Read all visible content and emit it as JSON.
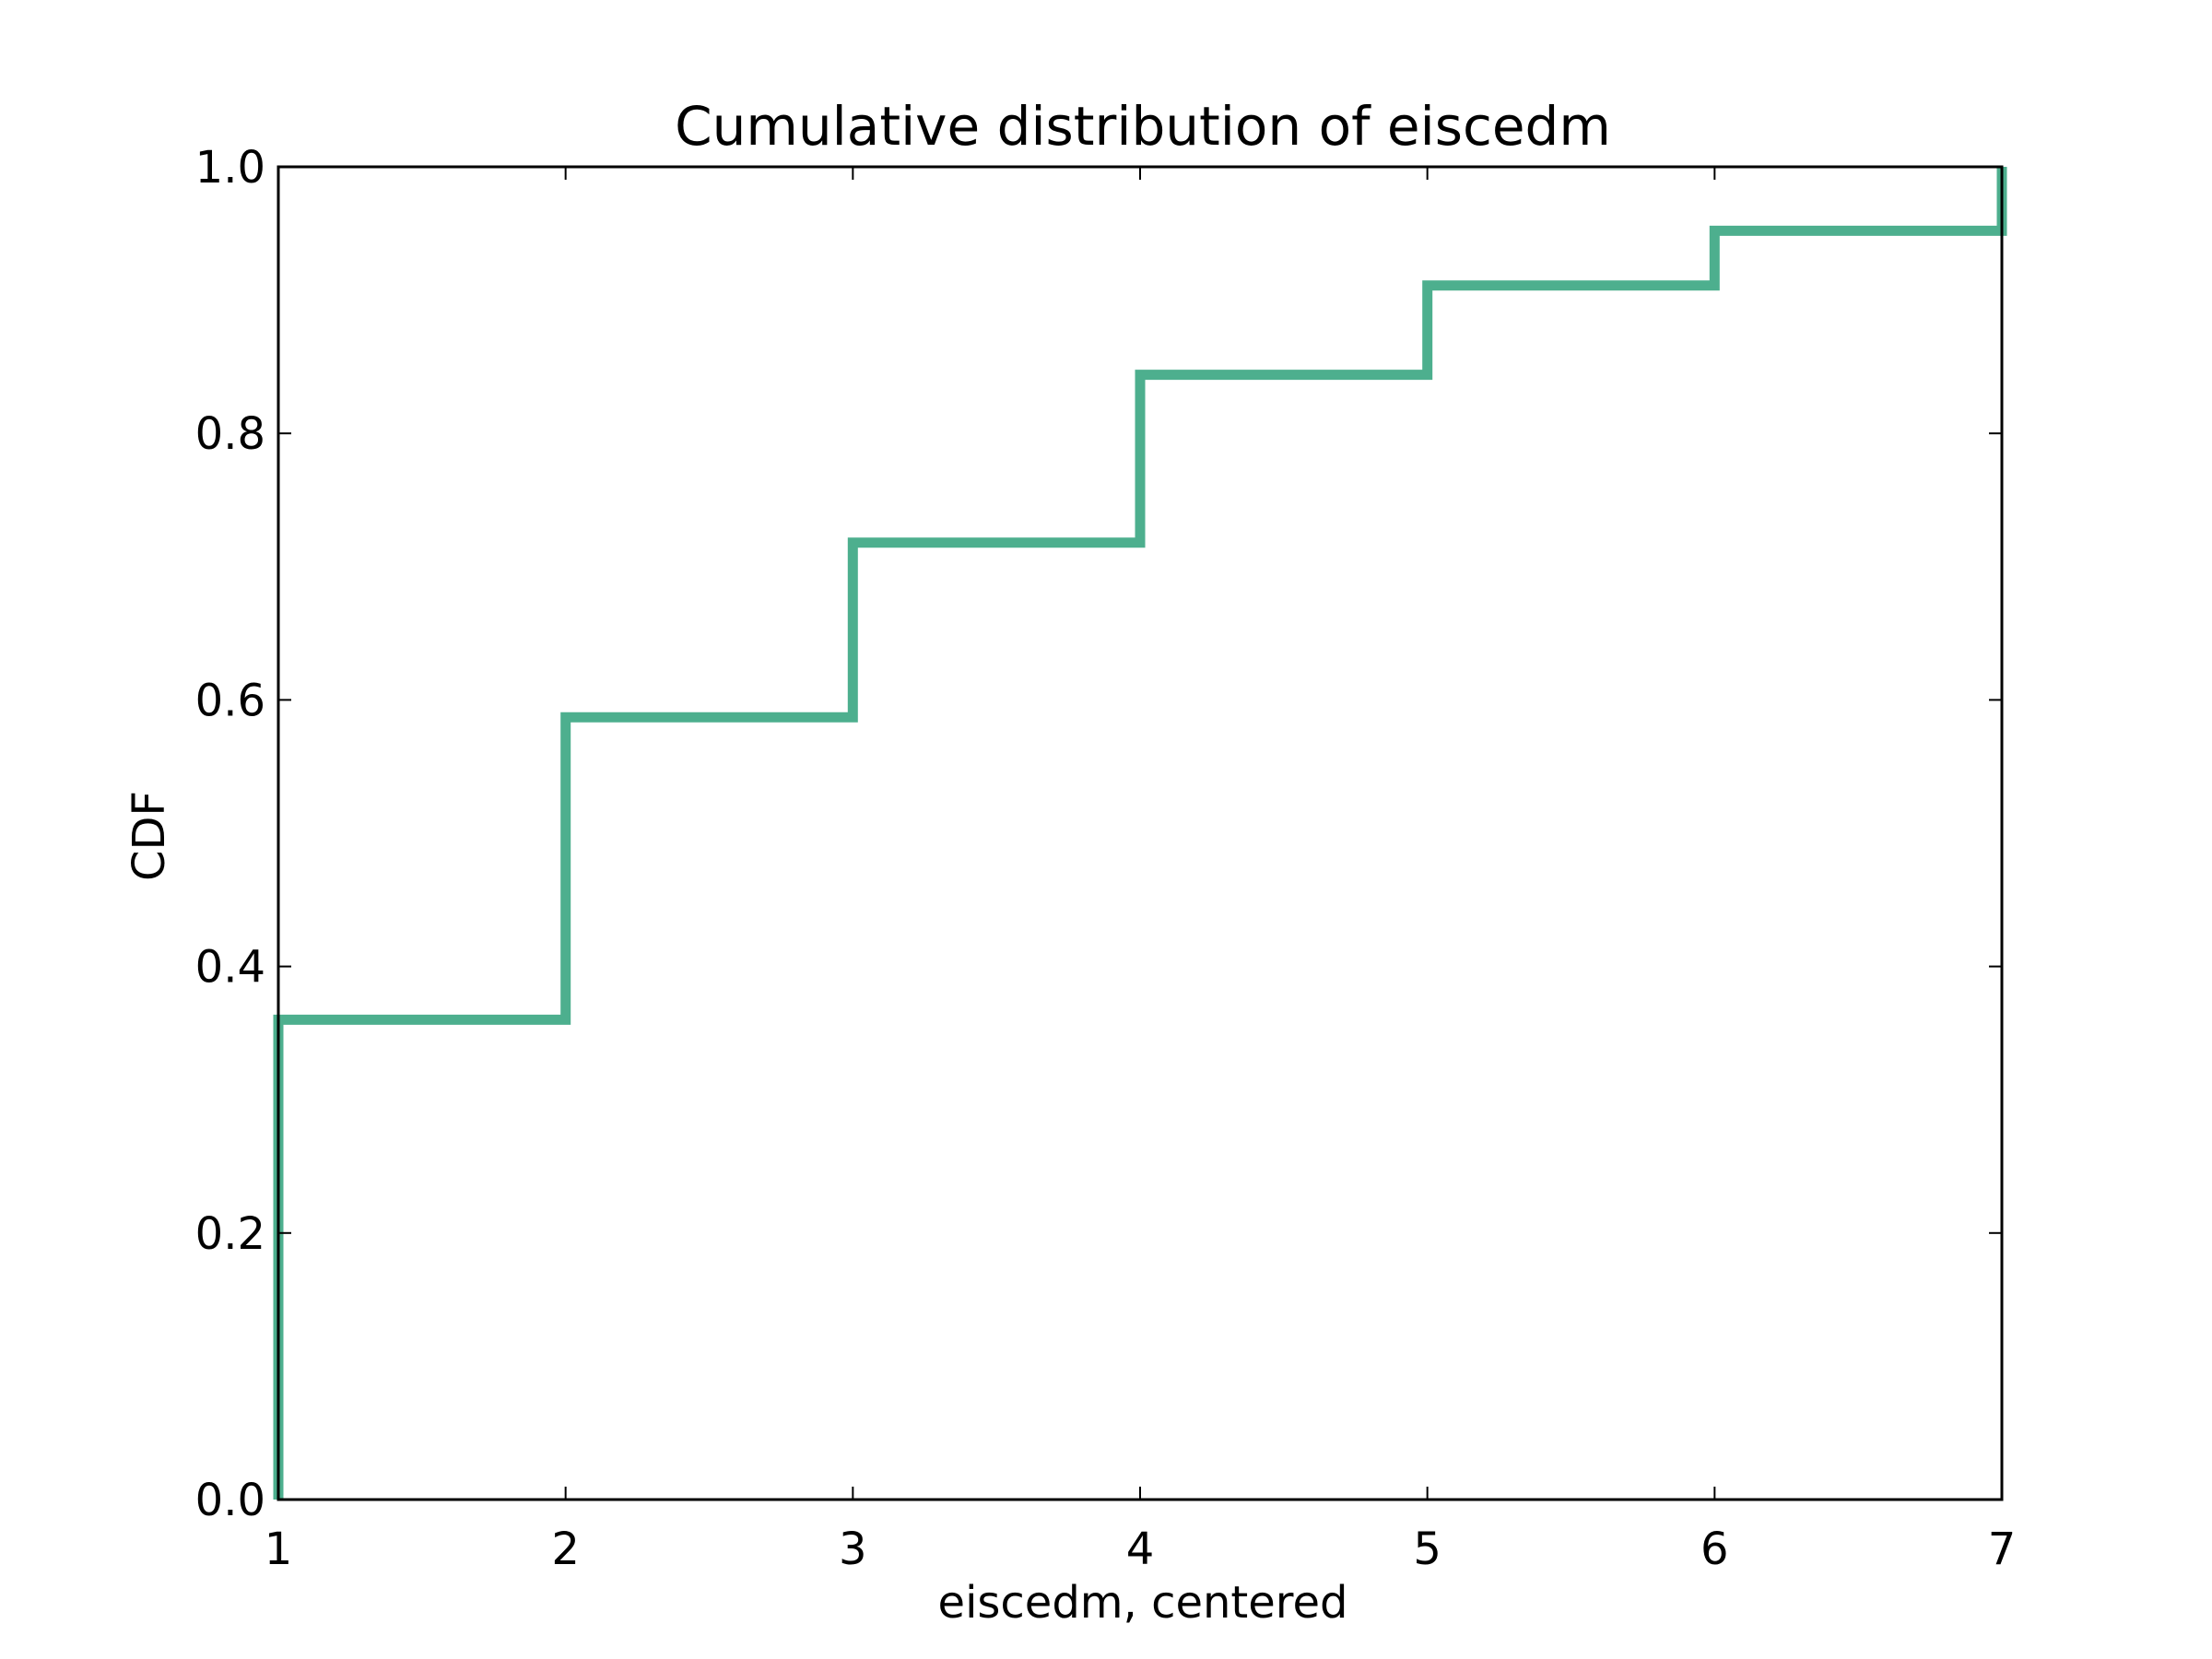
{
  "chart_data": {
    "type": "line",
    "step": true,
    "title": "Cumulative distribution of eiscedm",
    "xlabel": "eiscedm, centered",
    "ylabel": "CDF",
    "xlim": [
      1,
      7
    ],
    "ylim": [
      0.0,
      1.0
    ],
    "x_ticks": [
      "1",
      "2",
      "3",
      "4",
      "5",
      "6",
      "7"
    ],
    "y_ticks": [
      "0.0",
      "0.2",
      "0.4",
      "0.6",
      "0.8",
      "1.0"
    ],
    "grid": false,
    "legend": "none",
    "series": [
      {
        "color": "#4daf8e",
        "points": [
          {
            "x": 1,
            "y": 0.0
          },
          {
            "x": 1,
            "y": 0.36
          },
          {
            "x": 2,
            "y": 0.36
          },
          {
            "x": 2,
            "y": 0.587
          },
          {
            "x": 3,
            "y": 0.587
          },
          {
            "x": 3,
            "y": 0.718
          },
          {
            "x": 4,
            "y": 0.718
          },
          {
            "x": 4,
            "y": 0.844
          },
          {
            "x": 5,
            "y": 0.844
          },
          {
            "x": 5,
            "y": 0.911
          },
          {
            "x": 6,
            "y": 0.911
          },
          {
            "x": 6,
            "y": 0.952
          },
          {
            "x": 7,
            "y": 0.952
          },
          {
            "x": 7,
            "y": 1.0
          }
        ]
      }
    ]
  }
}
